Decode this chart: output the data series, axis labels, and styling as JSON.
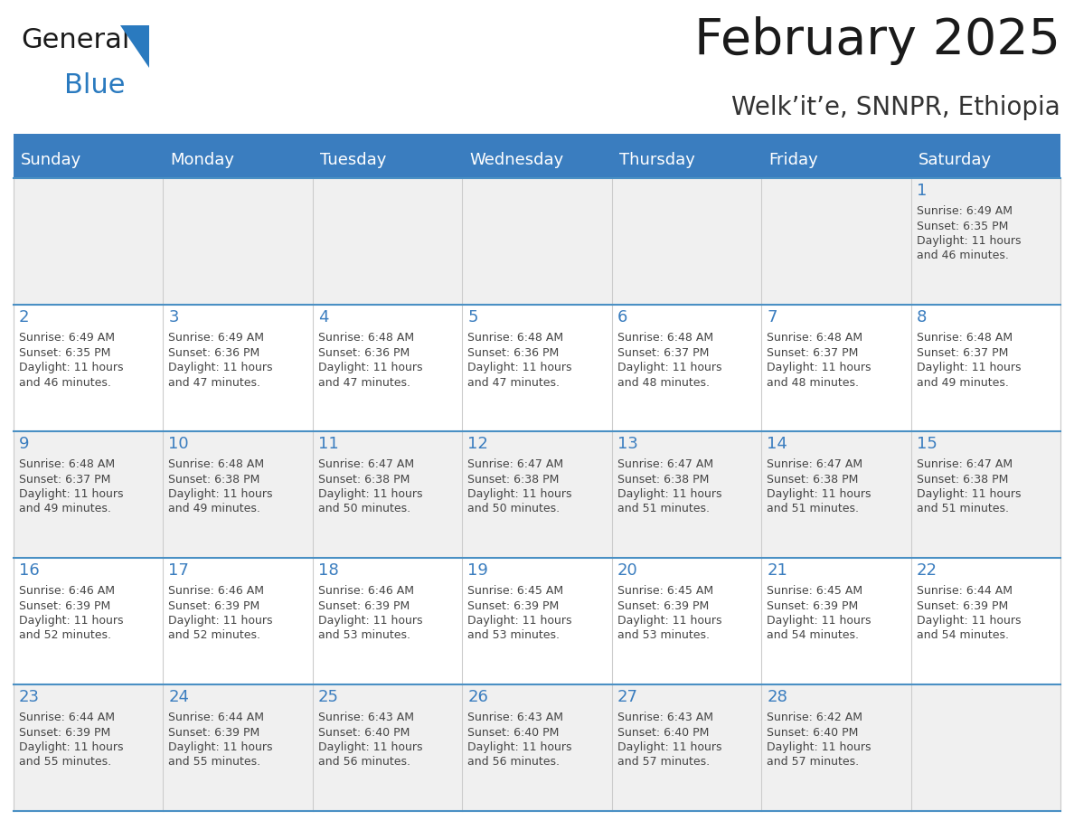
{
  "title": "February 2025",
  "subtitle": "Welk’it’e, SNNPR, Ethiopia",
  "days_of_week": [
    "Sunday",
    "Monday",
    "Tuesday",
    "Wednesday",
    "Thursday",
    "Friday",
    "Saturday"
  ],
  "header_bg": "#3a7dbf",
  "header_text": "#FFFFFF",
  "cell_bg_light": "#F0F0F0",
  "cell_bg_white": "#FFFFFF",
  "row_border_color": "#4a90c4",
  "cell_border_color": "#CCCCCC",
  "day_num_color": "#3a7dbf",
  "info_color": "#444444",
  "title_color": "#1a1a1a",
  "subtitle_color": "#333333",
  "logo_general_color": "#1A1A1A",
  "logo_blue_color": "#2a7abf",
  "calendar": [
    [
      null,
      null,
      null,
      null,
      null,
      null,
      1
    ],
    [
      2,
      3,
      4,
      5,
      6,
      7,
      8
    ],
    [
      9,
      10,
      11,
      12,
      13,
      14,
      15
    ],
    [
      16,
      17,
      18,
      19,
      20,
      21,
      22
    ],
    [
      23,
      24,
      25,
      26,
      27,
      28,
      null
    ]
  ],
  "sunrise_data": {
    "1": {
      "sunrise": "6:49 AM",
      "sunset": "6:35 PM",
      "daylight": "11 hours and 46 minutes."
    },
    "2": {
      "sunrise": "6:49 AM",
      "sunset": "6:35 PM",
      "daylight": "11 hours and 46 minutes."
    },
    "3": {
      "sunrise": "6:49 AM",
      "sunset": "6:36 PM",
      "daylight": "11 hours and 47 minutes."
    },
    "4": {
      "sunrise": "6:48 AM",
      "sunset": "6:36 PM",
      "daylight": "11 hours and 47 minutes."
    },
    "5": {
      "sunrise": "6:48 AM",
      "sunset": "6:36 PM",
      "daylight": "11 hours and 47 minutes."
    },
    "6": {
      "sunrise": "6:48 AM",
      "sunset": "6:37 PM",
      "daylight": "11 hours and 48 minutes."
    },
    "7": {
      "sunrise": "6:48 AM",
      "sunset": "6:37 PM",
      "daylight": "11 hours and 48 minutes."
    },
    "8": {
      "sunrise": "6:48 AM",
      "sunset": "6:37 PM",
      "daylight": "11 hours and 49 minutes."
    },
    "9": {
      "sunrise": "6:48 AM",
      "sunset": "6:37 PM",
      "daylight": "11 hours and 49 minutes."
    },
    "10": {
      "sunrise": "6:48 AM",
      "sunset": "6:38 PM",
      "daylight": "11 hours and 49 minutes."
    },
    "11": {
      "sunrise": "6:47 AM",
      "sunset": "6:38 PM",
      "daylight": "11 hours and 50 minutes."
    },
    "12": {
      "sunrise": "6:47 AM",
      "sunset": "6:38 PM",
      "daylight": "11 hours and 50 minutes."
    },
    "13": {
      "sunrise": "6:47 AM",
      "sunset": "6:38 PM",
      "daylight": "11 hours and 51 minutes."
    },
    "14": {
      "sunrise": "6:47 AM",
      "sunset": "6:38 PM",
      "daylight": "11 hours and 51 minutes."
    },
    "15": {
      "sunrise": "6:47 AM",
      "sunset": "6:38 PM",
      "daylight": "11 hours and 51 minutes."
    },
    "16": {
      "sunrise": "6:46 AM",
      "sunset": "6:39 PM",
      "daylight": "11 hours and 52 minutes."
    },
    "17": {
      "sunrise": "6:46 AM",
      "sunset": "6:39 PM",
      "daylight": "11 hours and 52 minutes."
    },
    "18": {
      "sunrise": "6:46 AM",
      "sunset": "6:39 PM",
      "daylight": "11 hours and 53 minutes."
    },
    "19": {
      "sunrise": "6:45 AM",
      "sunset": "6:39 PM",
      "daylight": "11 hours and 53 minutes."
    },
    "20": {
      "sunrise": "6:45 AM",
      "sunset": "6:39 PM",
      "daylight": "11 hours and 53 minutes."
    },
    "21": {
      "sunrise": "6:45 AM",
      "sunset": "6:39 PM",
      "daylight": "11 hours and 54 minutes."
    },
    "22": {
      "sunrise": "6:44 AM",
      "sunset": "6:39 PM",
      "daylight": "11 hours and 54 minutes."
    },
    "23": {
      "sunrise": "6:44 AM",
      "sunset": "6:39 PM",
      "daylight": "11 hours and 55 minutes."
    },
    "24": {
      "sunrise": "6:44 AM",
      "sunset": "6:39 PM",
      "daylight": "11 hours and 55 minutes."
    },
    "25": {
      "sunrise": "6:43 AM",
      "sunset": "6:40 PM",
      "daylight": "11 hours and 56 minutes."
    },
    "26": {
      "sunrise": "6:43 AM",
      "sunset": "6:40 PM",
      "daylight": "11 hours and 56 minutes."
    },
    "27": {
      "sunrise": "6:43 AM",
      "sunset": "6:40 PM",
      "daylight": "11 hours and 57 minutes."
    },
    "28": {
      "sunrise": "6:42 AM",
      "sunset": "6:40 PM",
      "daylight": "11 hours and 57 minutes."
    }
  },
  "fig_width": 11.88,
  "fig_height": 9.18,
  "dpi": 100
}
